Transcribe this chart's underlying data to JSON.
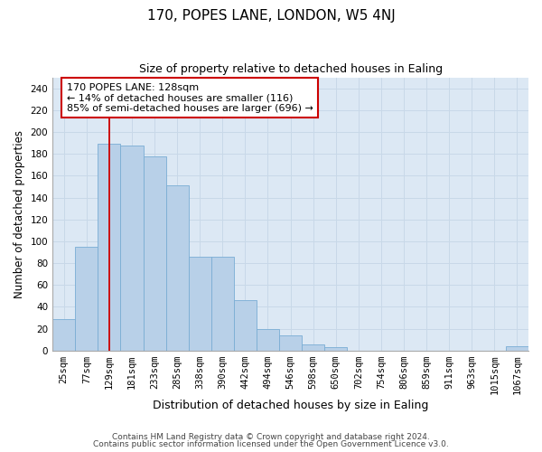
{
  "title1": "170, POPES LANE, LONDON, W5 4NJ",
  "title2": "Size of property relative to detached houses in Ealing",
  "xlabel": "Distribution of detached houses by size in Ealing",
  "ylabel": "Number of detached properties",
  "categories": [
    "25sqm",
    "77sqm",
    "129sqm",
    "181sqm",
    "233sqm",
    "285sqm",
    "338sqm",
    "390sqm",
    "442sqm",
    "494sqm",
    "546sqm",
    "598sqm",
    "650sqm",
    "702sqm",
    "754sqm",
    "806sqm",
    "859sqm",
    "911sqm",
    "963sqm",
    "1015sqm",
    "1067sqm"
  ],
  "values": [
    29,
    95,
    189,
    188,
    178,
    151,
    86,
    86,
    46,
    20,
    14,
    6,
    3,
    0,
    0,
    0,
    0,
    0,
    0,
    0,
    4
  ],
  "bar_color": "#b8d0e8",
  "bar_edge_color": "#7aadd4",
  "annotation_text_line1": "170 POPES LANE: 128sqm",
  "annotation_text_line2": "← 14% of detached houses are smaller (116)",
  "annotation_text_line3": "85% of semi-detached houses are larger (696) →",
  "annotation_box_color": "#ffffff",
  "annotation_box_edge": "#cc0000",
  "red_line_color": "#cc0000",
  "grid_color": "#c8d8e8",
  "background_color": "#dce8f4",
  "footer1": "Contains HM Land Registry data © Crown copyright and database right 2024.",
  "footer2": "Contains public sector information licensed under the Open Government Licence v3.0.",
  "ylim": [
    0,
    250
  ],
  "yticks": [
    0,
    20,
    40,
    60,
    80,
    100,
    120,
    140,
    160,
    180,
    200,
    220,
    240
  ],
  "title1_fontsize": 11,
  "title2_fontsize": 9,
  "ylabel_fontsize": 8.5,
  "xlabel_fontsize": 9,
  "tick_fontsize": 7.5,
  "footer_fontsize": 6.5
}
